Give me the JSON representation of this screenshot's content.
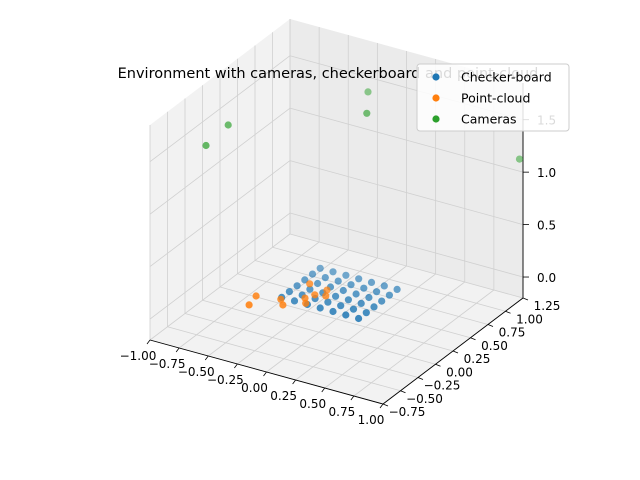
{
  "chart_data": {
    "type": "scatter3d",
    "title": "Environment with cameras, checkerboard and point-cloud",
    "xticks": [
      "−1.00",
      "−0.75",
      "−0.50",
      "−0.25",
      "0.00",
      "0.25",
      "0.50",
      "0.75",
      "1.00"
    ],
    "yticks": [
      "−0.75",
      "−0.50",
      "−0.25",
      "0.00",
      "0.25",
      "0.50",
      "0.75",
      "1.00",
      "1.25"
    ],
    "zticks": [
      "0.0",
      "0.5",
      "1.0",
      "1.5"
    ],
    "xlim": [
      -1.0,
      1.0
    ],
    "ylim": [
      -0.75,
      1.25
    ],
    "zlim": [
      -0.2,
      1.85
    ],
    "grid": true,
    "legend": "top-right",
    "series": [
      {
        "name": "Checker-board",
        "color": "#1f77b4",
        "rows": 7,
        "cols": 6,
        "x0": -0.35,
        "dx": 0.11,
        "y0": 0.05,
        "dy": 0.11,
        "z": 0.0
      },
      {
        "name": "Point-cloud",
        "color": "#ff7f0e",
        "points": [
          [
            -0.28,
            -0.05,
            0.0
          ],
          [
            -0.48,
            -0.1,
            0.05
          ],
          [
            -0.34,
            0.02,
            0.0
          ],
          [
            -0.18,
            0.1,
            0.02
          ],
          [
            -0.12,
            0.14,
            0.05
          ],
          [
            -0.15,
            0.06,
            0.0
          ],
          [
            -0.05,
            0.18,
            0.04
          ],
          [
            -0.2,
            0.2,
            0.1
          ],
          [
            -0.1,
            0.28,
            0.03
          ],
          [
            -0.45,
            -0.25,
            0.05
          ]
        ]
      },
      {
        "name": "Cameras",
        "color": "#2ca02c",
        "points": [
          [
            -1.0,
            0.05,
            1.25
          ],
          [
            -0.9,
            0.2,
            1.4
          ],
          [
            -0.12,
            0.9,
            1.6
          ],
          [
            0.05,
            0.6,
            1.6
          ],
          [
            1.0,
            1.2,
            1.15
          ]
        ]
      }
    ]
  }
}
